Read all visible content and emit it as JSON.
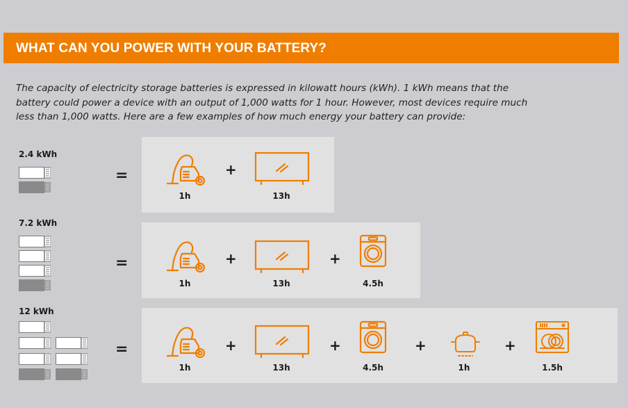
{
  "header": {
    "title": "WHAT CAN YOU POWER WITH YOUR BATTERY?"
  },
  "intro": {
    "line1": "The capacity of electricity storage batteries is expressed in kilowatt hours (kWh). 1 kWh means that the",
    "line2": "battery could power a device with an output of 1,000 watts for 1 hour. However, most devices require much",
    "line3": "less than 1,000 watts. Here are a few examples of how much energy your battery can provide:"
  },
  "rows": [
    {
      "capacity": "2.4 kWh",
      "equals": "=",
      "plus": "+",
      "durations": {
        "vacuum": "1h",
        "tv": "13h"
      }
    },
    {
      "capacity": "7.2 kWh",
      "equals": "=",
      "plus": "+",
      "durations": {
        "vacuum": "1h",
        "tv": "13h",
        "washer": "4.5h"
      }
    },
    {
      "capacity": "12 kWh",
      "equals": "=",
      "plus": "+",
      "durations": {
        "vacuum": "1h",
        "tv": "13h",
        "washer": "4.5h",
        "cooker": "1h",
        "dishwasher": "1.5h"
      }
    }
  ],
  "icons": [
    "battery-icon",
    "vacuum-cleaner-icon",
    "television-icon",
    "washing-machine-icon",
    "cooking-pot-icon",
    "dishwasher-icon"
  ],
  "colors": {
    "accent": "#ef7d00",
    "panel": "#e1e1e1",
    "background": "#cdcdd1",
    "battery_charged": "#ffffff",
    "battery_empty": "#8a8a8a"
  }
}
